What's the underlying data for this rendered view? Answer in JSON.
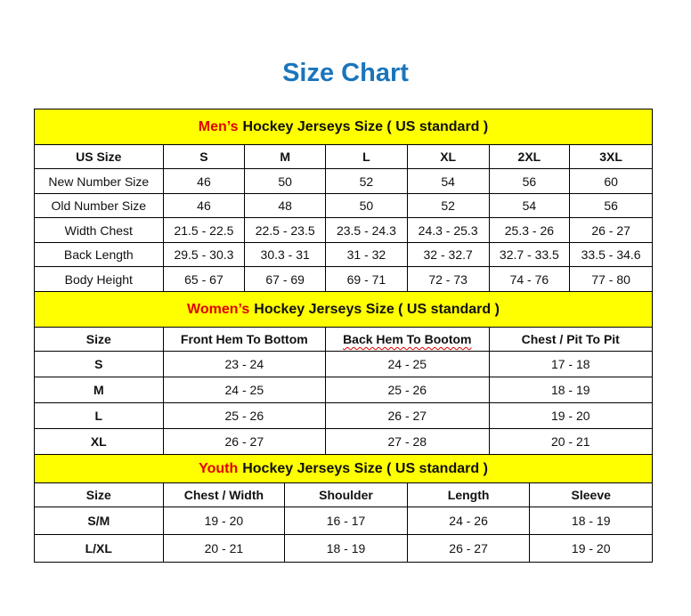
{
  "title": "Size Chart",
  "colors": {
    "title": "#1a75bc",
    "banner": "#ffff00",
    "highlight": "#e00000"
  },
  "sections": [
    {
      "highlight": "Men’s",
      "heading": "Hockey Jerseys Size ( US standard )",
      "columns": [
        "US Size",
        "S",
        "M",
        "L",
        "XL",
        "2XL",
        "3XL"
      ],
      "rows": [
        [
          "New Number Size",
          "46",
          "50",
          "52",
          "54",
          "56",
          "60"
        ],
        [
          "Old Number Size",
          "46",
          "48",
          "50",
          "52",
          "54",
          "56"
        ],
        [
          "Width Chest",
          "21.5 - 22.5",
          "22.5 - 23.5",
          "23.5 - 24.3",
          "24.3 - 25.3",
          "25.3 - 26",
          "26 - 27"
        ],
        [
          "Back Length",
          "29.5 - 30.3",
          "30.3 - 31",
          "31 - 32",
          "32 - 32.7",
          "32.7 - 33.5",
          "33.5 - 34.6"
        ],
        [
          "Body Height",
          "65 - 67",
          "67 - 69",
          "69 - 71",
          "72 - 73",
          "74 - 76",
          "77 - 80"
        ]
      ]
    },
    {
      "highlight": "Women’s",
      "heading": "Hockey Jerseys Size ( US standard )",
      "columns": [
        "Size",
        "Front Hem To Bottom",
        "Back Hem To Bootom",
        "Chest / Pit To Pit"
      ],
      "rows": [
        [
          "S",
          "23 - 24",
          "24 - 25",
          "17 - 18"
        ],
        [
          "M",
          "24 - 25",
          "25 - 26",
          "18 - 19"
        ],
        [
          "L",
          "25 - 26",
          "26 - 27",
          "19 - 20"
        ],
        [
          "XL",
          "26 - 27",
          "27 - 28",
          "20 - 21"
        ]
      ]
    },
    {
      "highlight": "Youth",
      "heading": "Hockey Jerseys Size ( US standard )",
      "columns": [
        "Size",
        "Chest / Width",
        "Shoulder",
        "Length",
        "Sleeve"
      ],
      "rows": [
        [
          "S/M",
          "19 - 20",
          "16 - 17",
          "24 - 26",
          "18 - 19"
        ],
        [
          "L/XL",
          "20 - 21",
          "18 - 19",
          "26 - 27",
          "19 - 20"
        ]
      ]
    }
  ]
}
